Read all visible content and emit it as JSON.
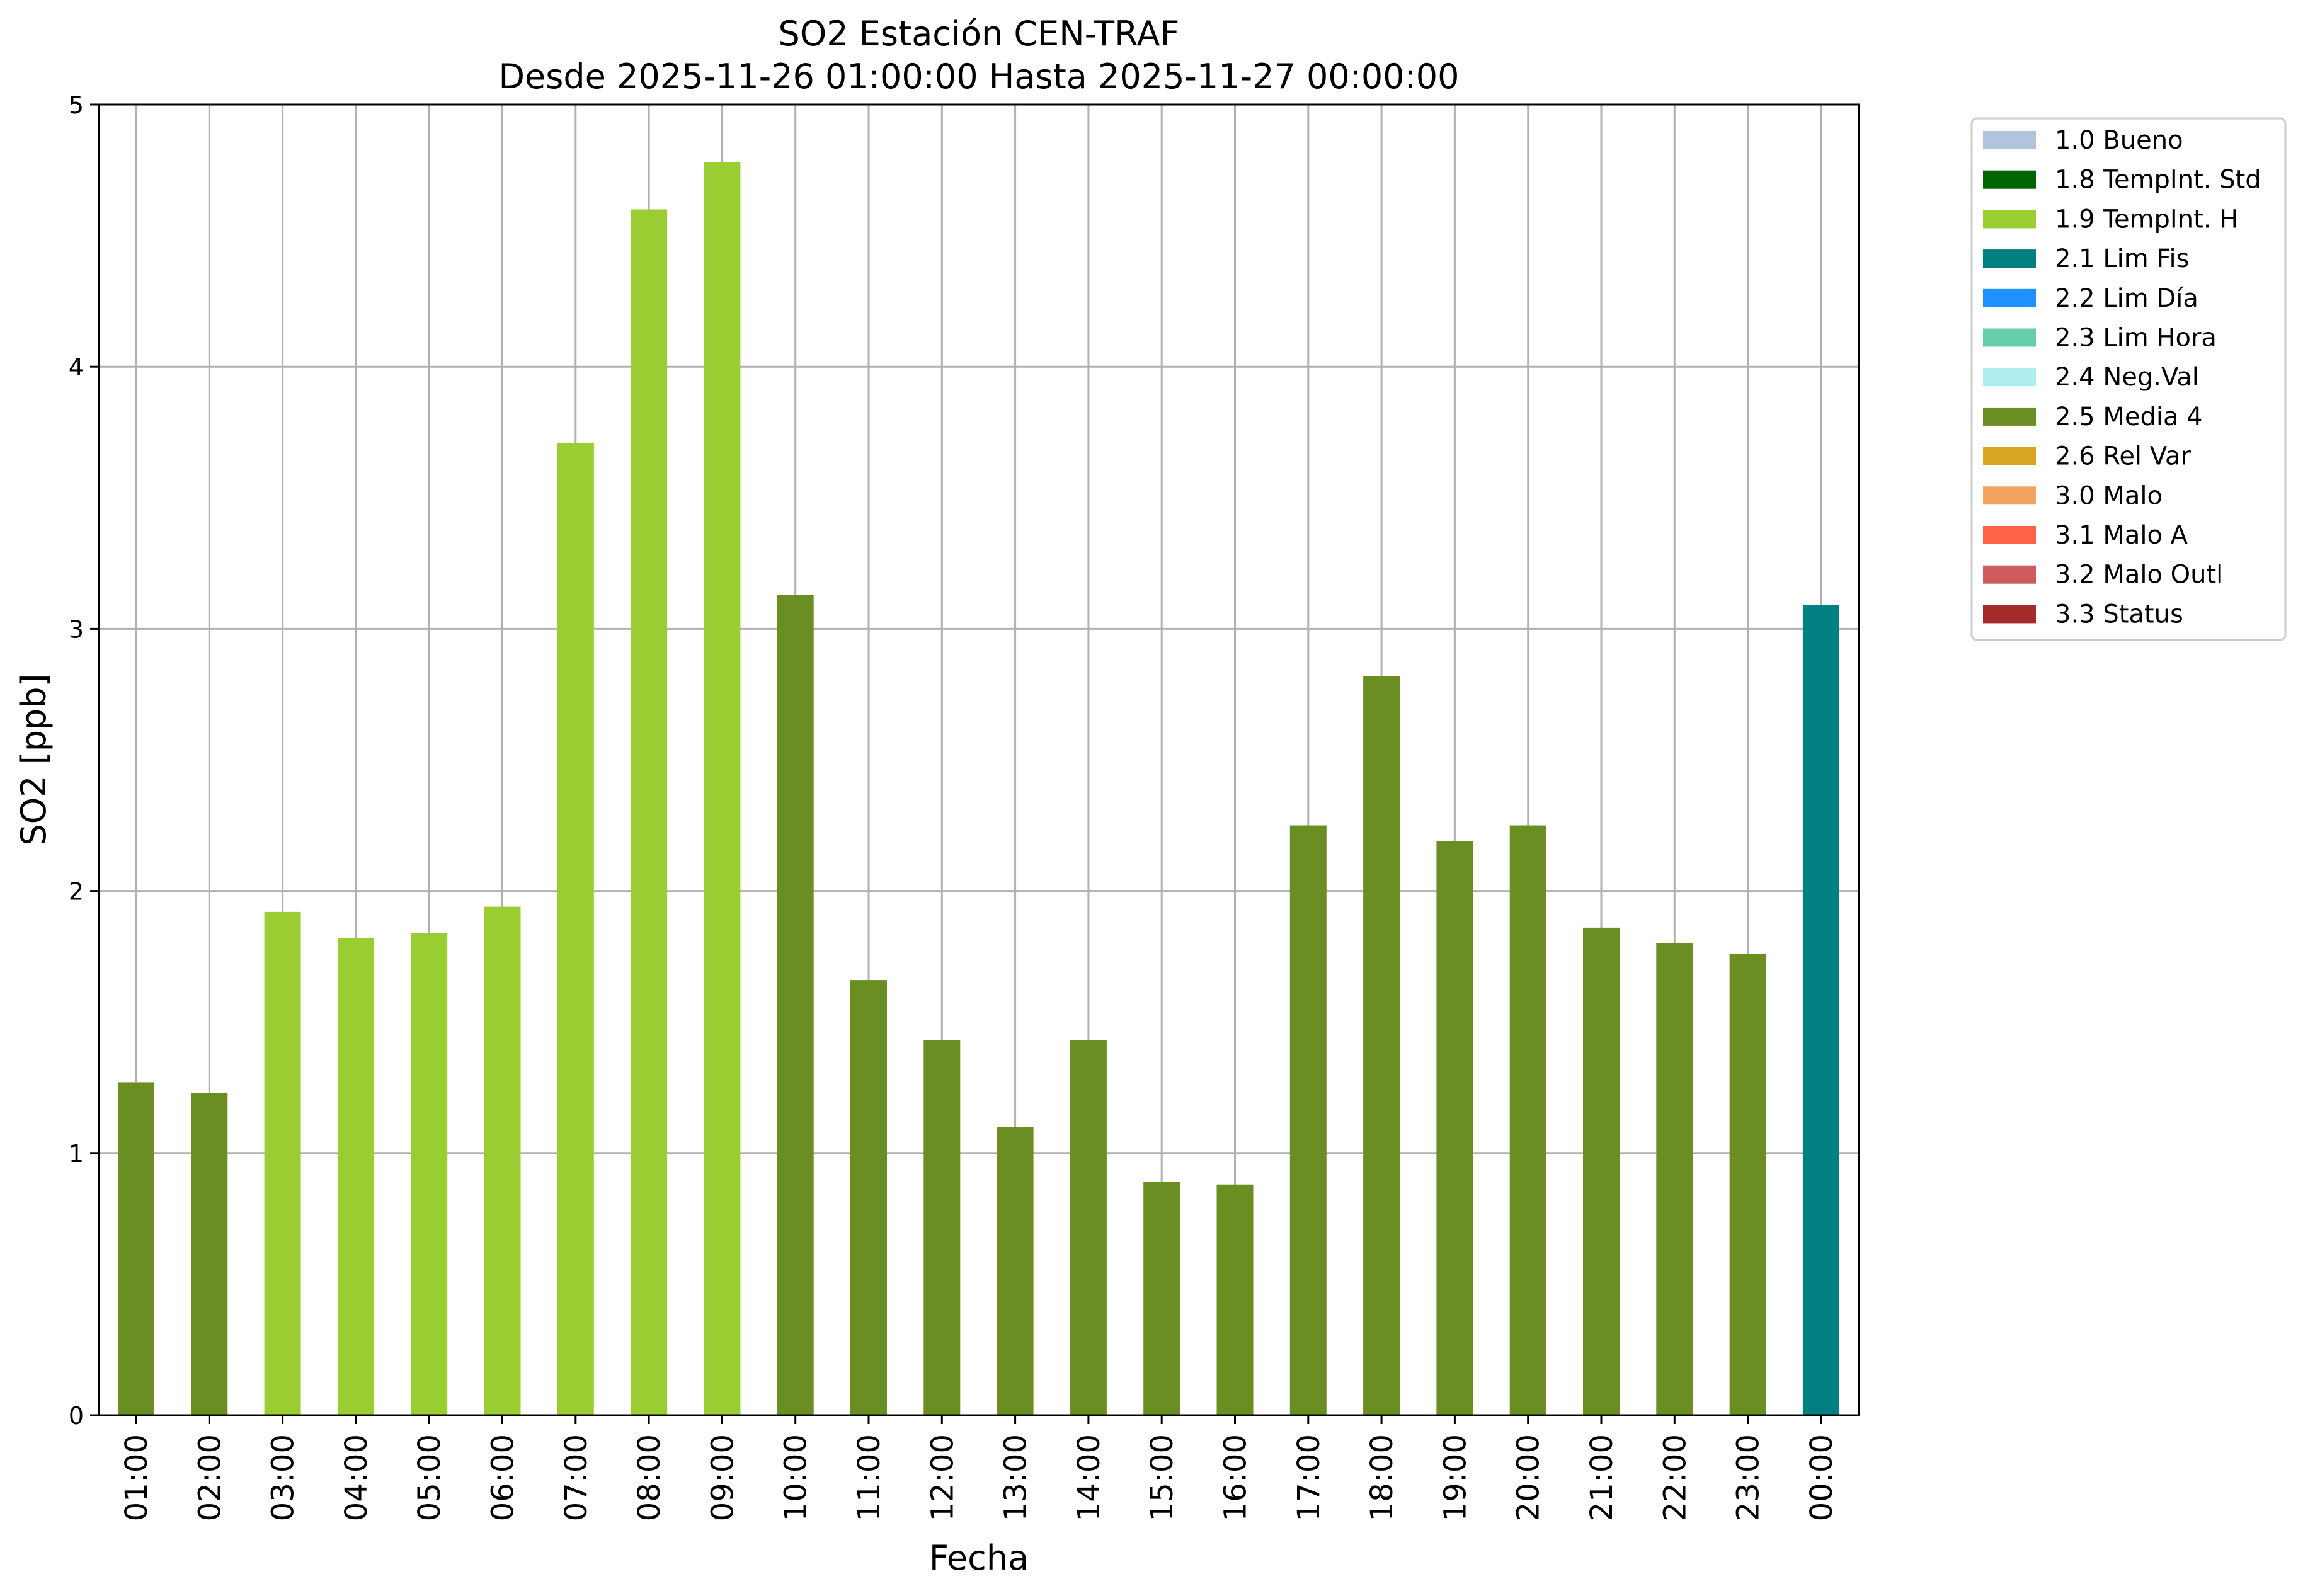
{
  "chart_data": {
    "type": "bar",
    "title": "SO2 Estación CEN-TRAF",
    "subtitle": "Desde 2025-11-26 01:00:00 Hasta 2025-11-27 00:00:00",
    "xlabel": "Fecha",
    "ylabel": "SO2 [ppb]",
    "ylim": [
      0,
      5
    ],
    "yticks": [
      "0",
      "1",
      "2",
      "3",
      "4",
      "5"
    ],
    "grid": true,
    "legend_position": "outside-top-right",
    "categories": [
      "01:00",
      "02:00",
      "03:00",
      "04:00",
      "05:00",
      "06:00",
      "07:00",
      "08:00",
      "09:00",
      "10:00",
      "11:00",
      "12:00",
      "13:00",
      "14:00",
      "15:00",
      "16:00",
      "17:00",
      "18:00",
      "19:00",
      "20:00",
      "21:00",
      "22:00",
      "23:00",
      "00:00"
    ],
    "values": [
      1.27,
      1.23,
      1.92,
      1.82,
      1.84,
      1.94,
      3.71,
      4.6,
      4.78,
      3.13,
      1.66,
      1.43,
      1.1,
      1.43,
      0.89,
      0.88,
      2.25,
      2.82,
      2.19,
      2.25,
      1.86,
      1.8,
      1.76,
      3.09
    ],
    "flags": [
      "2.5 Media 4",
      "2.5 Media 4",
      "1.9 TempInt. H",
      "1.9 TempInt. H",
      "1.9 TempInt. H",
      "1.9 TempInt. H",
      "1.9 TempInt. H",
      "1.9 TempInt. H",
      "1.9 TempInt. H",
      "2.5 Media 4",
      "2.5 Media 4",
      "2.5 Media 4",
      "2.5 Media 4",
      "2.5 Media 4",
      "2.5 Media 4",
      "2.5 Media 4",
      "2.5 Media 4",
      "2.5 Media 4",
      "2.5 Media 4",
      "2.5 Media 4",
      "2.5 Media 4",
      "2.5 Media 4",
      "2.5 Media 4",
      "2.1 Lim Fis"
    ],
    "legend": [
      {
        "label": "1.0 Bueno",
        "color": "#b0c4de"
      },
      {
        "label": "1.8 TempInt. Std",
        "color": "#006400"
      },
      {
        "label": "1.9 TempInt. H",
        "color": "#9acd32"
      },
      {
        "label": "2.1 Lim Fis",
        "color": "#008080"
      },
      {
        "label": "2.2 Lim Día",
        "color": "#1e90ff"
      },
      {
        "label": "2.3 Lim Hora",
        "color": "#66cdaa"
      },
      {
        "label": "2.4 Neg.Val",
        "color": "#afeeee"
      },
      {
        "label": "2.5 Media 4",
        "color": "#6b8e23"
      },
      {
        "label": "2.6 Rel Var",
        "color": "#daa520"
      },
      {
        "label": "3.0 Malo",
        "color": "#f4a460"
      },
      {
        "label": "3.1 Malo A",
        "color": "#ff6347"
      },
      {
        "label": "3.2 Malo Outl",
        "color": "#cd5c5c"
      },
      {
        "label": "3.3 Status",
        "color": "#a52a2a"
      }
    ]
  }
}
